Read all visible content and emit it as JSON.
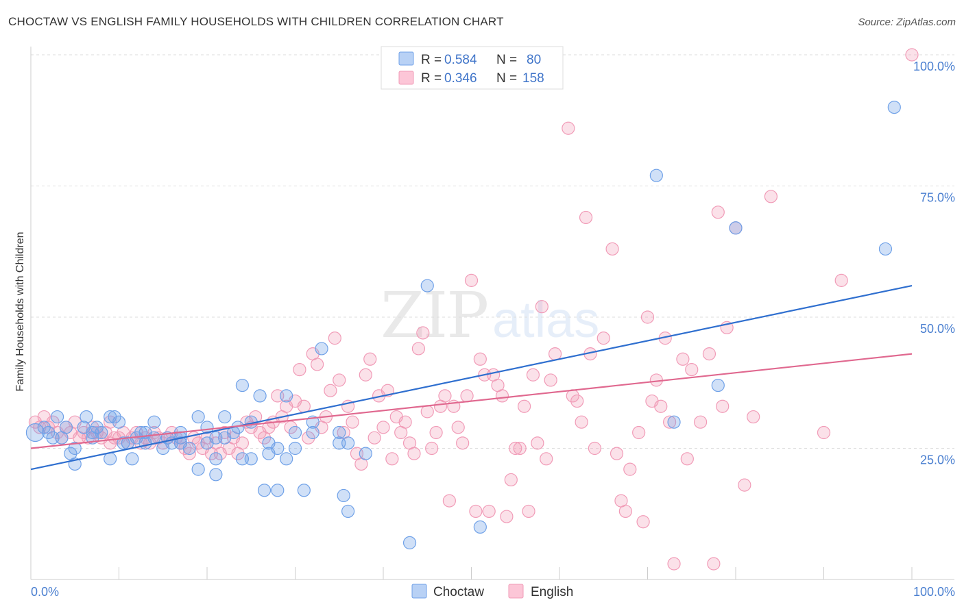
{
  "header": {
    "title": "CHOCTAW VS ENGLISH FAMILY HOUSEHOLDS WITH CHILDREN CORRELATION CHART",
    "source": "Source: ZipAtlas.com"
  },
  "colors": {
    "choctaw": "#6fa1e8",
    "choctaw_line": "#2f6fcf",
    "english": "#f19bb7",
    "english_line": "#e0688f",
    "accent_text": "#3f74c9"
  },
  "legend": {
    "rows": [
      {
        "r_label": "R =",
        "r_value": "0.584",
        "n_label": "N =",
        "n_value": "80"
      },
      {
        "r_label": "R =",
        "r_value": "0.346",
        "n_label": "N =",
        "n_value": "158"
      }
    ]
  },
  "bottom_legend": {
    "choctaw": "Choctaw",
    "english": "English"
  },
  "chart_data": {
    "type": "scatter",
    "title": "CHOCTAW VS ENGLISH FAMILY HOUSEHOLDS WITH CHILDREN CORRELATION CHART",
    "xlabel": "",
    "ylabel": "Family Households with Children",
    "xlim": [
      0,
      100
    ],
    "ylim": [
      0,
      100
    ],
    "x_tick_labels": [
      "0.0%",
      "100.0%"
    ],
    "y_tick_labels": [
      "25.0%",
      "50.0%",
      "75.0%",
      "100.0%"
    ],
    "y_ticks": [
      25,
      50,
      75,
      100
    ],
    "grid": true,
    "legend_position": "top-center",
    "watermark": "ZIPatlas",
    "series": [
      {
        "name": "Choctaw",
        "R": 0.584,
        "N": 80,
        "trend": {
          "x": [
            0,
            100
          ],
          "y": [
            21,
            56
          ]
        },
        "points": [
          [
            0.5,
            28
          ],
          [
            1.5,
            29
          ],
          [
            2,
            28
          ],
          [
            2.5,
            27
          ],
          [
            3,
            31
          ],
          [
            3.5,
            27
          ],
          [
            4,
            29
          ],
          [
            4.5,
            24
          ],
          [
            5,
            25
          ],
          [
            5,
            22
          ],
          [
            6,
            29
          ],
          [
            6.3,
            31
          ],
          [
            7,
            27
          ],
          [
            7,
            28
          ],
          [
            7.5,
            29
          ],
          [
            8,
            28
          ],
          [
            9,
            31
          ],
          [
            9,
            23
          ],
          [
            9.5,
            31
          ],
          [
            10,
            30
          ],
          [
            10.5,
            26
          ],
          [
            11,
            26
          ],
          [
            11.5,
            23
          ],
          [
            12,
            27
          ],
          [
            12.5,
            28
          ],
          [
            13,
            26
          ],
          [
            14,
            30
          ],
          [
            14,
            27
          ],
          [
            15,
            25
          ],
          [
            15.5,
            27
          ],
          [
            16,
            26
          ],
          [
            17,
            28
          ],
          [
            17,
            26
          ],
          [
            18,
            25
          ],
          [
            19,
            31
          ],
          [
            19,
            21
          ],
          [
            20,
            29
          ],
          [
            21,
            27
          ],
          [
            21,
            23
          ],
          [
            21,
            20
          ],
          [
            22,
            31
          ],
          [
            22,
            27
          ],
          [
            23,
            28
          ],
          [
            23.5,
            29
          ],
          [
            24,
            23
          ],
          [
            24,
            37
          ],
          [
            25,
            30
          ],
          [
            25,
            23
          ],
          [
            26,
            35
          ],
          [
            26.5,
            17
          ],
          [
            27,
            26
          ],
          [
            27,
            24
          ],
          [
            28,
            25
          ],
          [
            28,
            17
          ],
          [
            29,
            23
          ],
          [
            29,
            35
          ],
          [
            30,
            28
          ],
          [
            30,
            25
          ],
          [
            31,
            17
          ],
          [
            32,
            28
          ],
          [
            32,
            30
          ],
          [
            33,
            44
          ],
          [
            35,
            26
          ],
          [
            35,
            28
          ],
          [
            35.5,
            16
          ],
          [
            36,
            13
          ],
          [
            36,
            26
          ],
          [
            38,
            24
          ],
          [
            43,
            7
          ],
          [
            45,
            56
          ],
          [
            51,
            10
          ],
          [
            71,
            77
          ],
          [
            73,
            30
          ],
          [
            80,
            67
          ],
          [
            78,
            37
          ],
          [
            97,
            63
          ],
          [
            98,
            90
          ],
          [
            20,
            26
          ],
          [
            17,
            27
          ],
          [
            13,
            28
          ]
        ]
      },
      {
        "name": "English",
        "R": 0.346,
        "N": 158,
        "trend": {
          "x": [
            0,
            100
          ],
          "y": [
            25,
            43
          ]
        },
        "points": [
          [
            0.5,
            30
          ],
          [
            1,
            29
          ],
          [
            1.5,
            31
          ],
          [
            2,
            29
          ],
          [
            2.5,
            30
          ],
          [
            3,
            28
          ],
          [
            3.5,
            27
          ],
          [
            4,
            29
          ],
          [
            4.5,
            28
          ],
          [
            5,
            30
          ],
          [
            5.5,
            27
          ],
          [
            6,
            28
          ],
          [
            6.5,
            27
          ],
          [
            7,
            29
          ],
          [
            7.5,
            28
          ],
          [
            8,
            27
          ],
          [
            8.5,
            28
          ],
          [
            9,
            26
          ],
          [
            9.5,
            27
          ],
          [
            10,
            27
          ],
          [
            10.5,
            28
          ],
          [
            11,
            26
          ],
          [
            11.5,
            27
          ],
          [
            12,
            28
          ],
          [
            12.5,
            26
          ],
          [
            13,
            27
          ],
          [
            13.5,
            26
          ],
          [
            14,
            28
          ],
          [
            14.5,
            27
          ],
          [
            15,
            26
          ],
          [
            15.5,
            27
          ],
          [
            16,
            28
          ],
          [
            16.5,
            27
          ],
          [
            17,
            26
          ],
          [
            17.5,
            25
          ],
          [
            18,
            24
          ],
          [
            18.5,
            27
          ],
          [
            19,
            26
          ],
          [
            19.5,
            25
          ],
          [
            20,
            27
          ],
          [
            20.5,
            24
          ],
          [
            21,
            26
          ],
          [
            21.5,
            24
          ],
          [
            22,
            28
          ],
          [
            22.5,
            25
          ],
          [
            23,
            27
          ],
          [
            23.5,
            24
          ],
          [
            24,
            26
          ],
          [
            24.5,
            30
          ],
          [
            25,
            29
          ],
          [
            25.5,
            31
          ],
          [
            26,
            28
          ],
          [
            26.5,
            27
          ],
          [
            27,
            29
          ],
          [
            27.5,
            30
          ],
          [
            28,
            35
          ],
          [
            28.5,
            31
          ],
          [
            29,
            33
          ],
          [
            29.5,
            29
          ],
          [
            30,
            34
          ],
          [
            30.5,
            40
          ],
          [
            31,
            33
          ],
          [
            31.5,
            27
          ],
          [
            32,
            43
          ],
          [
            32.5,
            41
          ],
          [
            33,
            29
          ],
          [
            33.5,
            31
          ],
          [
            34,
            36
          ],
          [
            34.5,
            46
          ],
          [
            35,
            38
          ],
          [
            35.5,
            28
          ],
          [
            36,
            33
          ],
          [
            36.5,
            30
          ],
          [
            37,
            24
          ],
          [
            37.5,
            22
          ],
          [
            38,
            39
          ],
          [
            38.5,
            42
          ],
          [
            39,
            27
          ],
          [
            39.5,
            35
          ],
          [
            40,
            29
          ],
          [
            40.5,
            36
          ],
          [
            41,
            23
          ],
          [
            41.5,
            31
          ],
          [
            42,
            28
          ],
          [
            42.5,
            30
          ],
          [
            43,
            26
          ],
          [
            43.5,
            24
          ],
          [
            44,
            44
          ],
          [
            44.5,
            47
          ],
          [
            45,
            32
          ],
          [
            45.5,
            25
          ],
          [
            46,
            28
          ],
          [
            46.5,
            33
          ],
          [
            47,
            35
          ],
          [
            47.5,
            15
          ],
          [
            48,
            33
          ],
          [
            48.5,
            29
          ],
          [
            49,
            26
          ],
          [
            49.5,
            35
          ],
          [
            50,
            57
          ],
          [
            50.5,
            13
          ],
          [
            51,
            42
          ],
          [
            51.5,
            39
          ],
          [
            52,
            13
          ],
          [
            52.5,
            39
          ],
          [
            53,
            37
          ],
          [
            53.5,
            35
          ],
          [
            54,
            12
          ],
          [
            54.5,
            19
          ],
          [
            55,
            25
          ],
          [
            55.5,
            25
          ],
          [
            56,
            33
          ],
          [
            56.5,
            13
          ],
          [
            57,
            39
          ],
          [
            57.5,
            26
          ],
          [
            58,
            52
          ],
          [
            58.5,
            23
          ],
          [
            59,
            38
          ],
          [
            59.5,
            43
          ],
          [
            61,
            86
          ],
          [
            61.5,
            35
          ],
          [
            62,
            34
          ],
          [
            62.5,
            30
          ],
          [
            63,
            69
          ],
          [
            63.5,
            43
          ],
          [
            64,
            25
          ],
          [
            65,
            46
          ],
          [
            66,
            63
          ],
          [
            66.5,
            24
          ],
          [
            67,
            15
          ],
          [
            67.5,
            13
          ],
          [
            68,
            21
          ],
          [
            69,
            28
          ],
          [
            69.5,
            11
          ],
          [
            70,
            50
          ],
          [
            70.5,
            34
          ],
          [
            71,
            38
          ],
          [
            71.5,
            33
          ],
          [
            72,
            46
          ],
          [
            72.5,
            30
          ],
          [
            73,
            3
          ],
          [
            74,
            42
          ],
          [
            74.5,
            23
          ],
          [
            75,
            40
          ],
          [
            76,
            30
          ],
          [
            77,
            43
          ],
          [
            77.5,
            3
          ],
          [
            78,
            70
          ],
          [
            78.5,
            33
          ],
          [
            79,
            48
          ],
          [
            80,
            67
          ],
          [
            81,
            18
          ],
          [
            82,
            31
          ],
          [
            84,
            73
          ],
          [
            90,
            28
          ],
          [
            92,
            57
          ],
          [
            100,
            100
          ],
          [
            9,
            30
          ]
        ]
      }
    ]
  }
}
